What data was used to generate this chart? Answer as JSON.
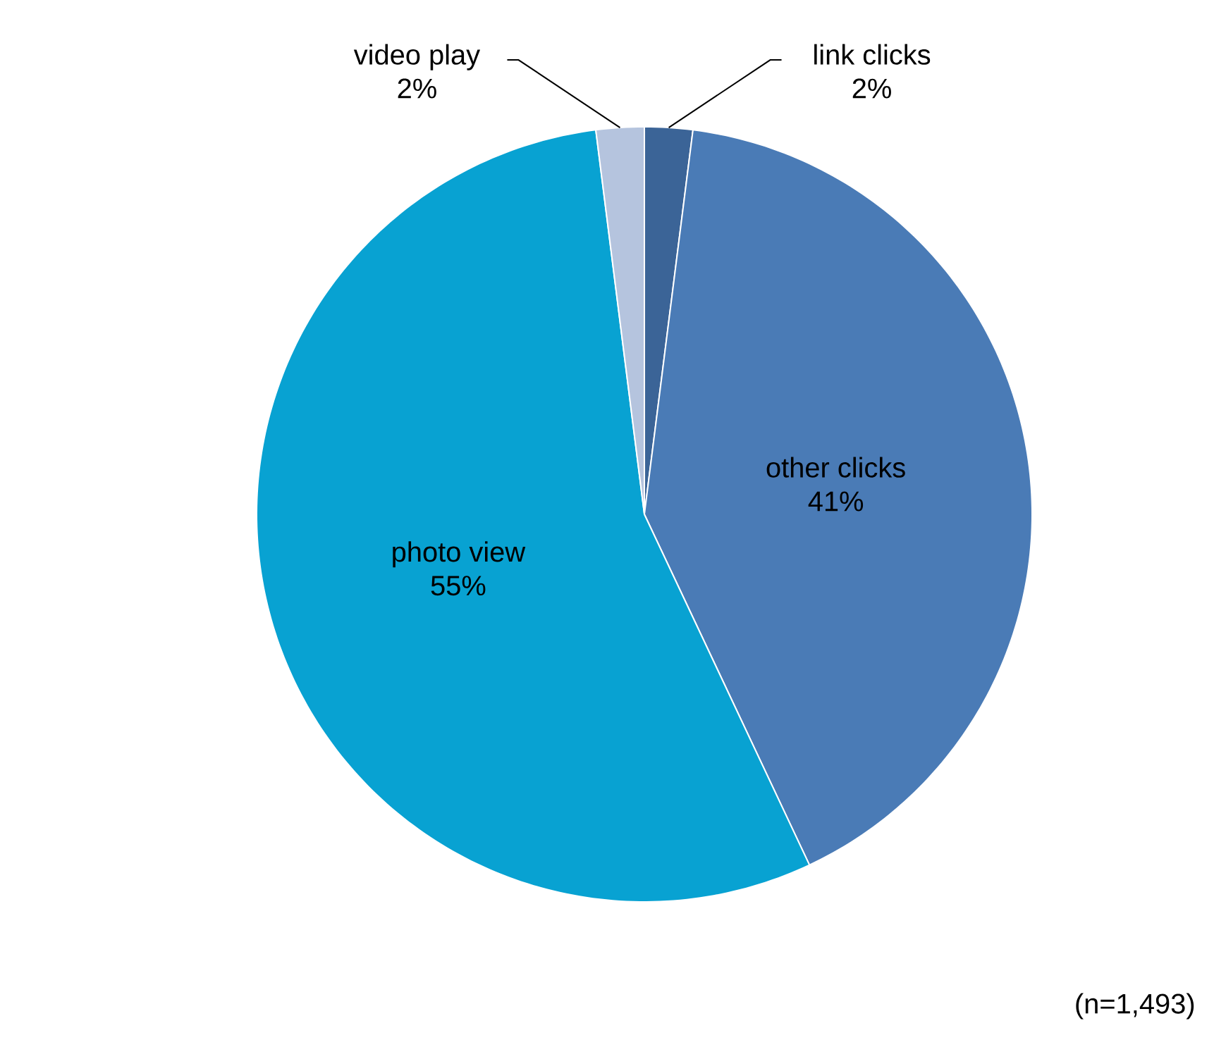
{
  "chart_data": {
    "type": "pie",
    "categories": [
      "link clicks",
      "other clicks",
      "photo view",
      "video play"
    ],
    "values": [
      2,
      41,
      55,
      2
    ],
    "value_labels": [
      "2%",
      "41%",
      "55%",
      "2%"
    ],
    "colors": [
      "#3b6497",
      "#4a7bb6",
      "#08a2d2",
      "#b5c4de"
    ],
    "annotations": [
      "(n=1,493)"
    ]
  }
}
